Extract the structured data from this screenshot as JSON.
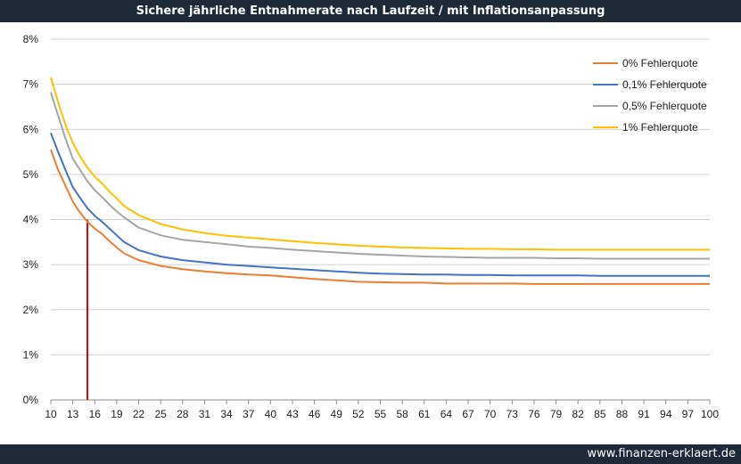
{
  "title": "Sichere jährliche Entnahmerate nach Laufzeit / mit Inflationsanpassung",
  "footer": "www.finanzen-erklaert.de",
  "chart_data": {
    "type": "line",
    "title": "Sichere jährliche Entnahmerate nach Laufzeit / mit Inflationsanpassung",
    "xlabel": "",
    "ylabel": "",
    "xlim": [
      10,
      100
    ],
    "ylim": [
      0,
      8
    ],
    "y_ticks": [
      {
        "value": 0,
        "label": "0%"
      },
      {
        "value": 1,
        "label": "1%"
      },
      {
        "value": 2,
        "label": "2%"
      },
      {
        "value": 3,
        "label": "3%"
      },
      {
        "value": 4,
        "label": "4%"
      },
      {
        "value": 5,
        "label": "5%"
      },
      {
        "value": 6,
        "label": "6%"
      },
      {
        "value": 7,
        "label": "7%"
      },
      {
        "value": 8,
        "label": "8%"
      }
    ],
    "x_ticks": [
      "10",
      "13",
      "16",
      "19",
      "22",
      "25",
      "28",
      "31",
      "34",
      "37",
      "40",
      "43",
      "46",
      "49",
      "52",
      "55",
      "58",
      "61",
      "64",
      "67",
      "70",
      "73",
      "76",
      "79",
      "82",
      "85",
      "88",
      "91",
      "94",
      "97",
      "100"
    ],
    "grid": true,
    "legend_position": "top-right",
    "x": [
      10,
      11,
      12,
      13,
      14,
      15,
      16,
      17,
      18,
      19,
      20,
      22,
      25,
      28,
      31,
      34,
      37,
      40,
      43,
      46,
      49,
      52,
      55,
      58,
      61,
      64,
      67,
      70,
      73,
      76,
      79,
      82,
      85,
      88,
      91,
      94,
      97,
      100
    ],
    "series": [
      {
        "name": "0% Fehlerquote",
        "color": "#ed7d31",
        "values": [
          5.55,
          5.1,
          4.75,
          4.4,
          4.15,
          3.95,
          3.8,
          3.68,
          3.52,
          3.38,
          3.25,
          3.1,
          2.97,
          2.9,
          2.85,
          2.81,
          2.78,
          2.76,
          2.72,
          2.68,
          2.65,
          2.62,
          2.61,
          2.6,
          2.6,
          2.58,
          2.58,
          2.58,
          2.58,
          2.57,
          2.57,
          2.57,
          2.57,
          2.57,
          2.57,
          2.57,
          2.57,
          2.57
        ]
      },
      {
        "name": "0,1% Fehlerquote",
        "color": "#4472c4",
        "values": [
          5.92,
          5.5,
          5.1,
          4.72,
          4.48,
          4.25,
          4.08,
          3.95,
          3.8,
          3.65,
          3.5,
          3.32,
          3.18,
          3.1,
          3.05,
          3.0,
          2.97,
          2.94,
          2.91,
          2.88,
          2.85,
          2.82,
          2.8,
          2.79,
          2.78,
          2.78,
          2.77,
          2.77,
          2.76,
          2.76,
          2.76,
          2.76,
          2.75,
          2.75,
          2.75,
          2.75,
          2.75,
          2.75
        ]
      },
      {
        "name": "0,5% Fehlerquote",
        "color": "#a5a5a5",
        "values": [
          6.82,
          6.3,
          5.8,
          5.35,
          5.1,
          4.85,
          4.65,
          4.5,
          4.33,
          4.18,
          4.05,
          3.82,
          3.65,
          3.55,
          3.5,
          3.45,
          3.4,
          3.37,
          3.33,
          3.3,
          3.27,
          3.24,
          3.22,
          3.2,
          3.18,
          3.17,
          3.16,
          3.15,
          3.15,
          3.15,
          3.14,
          3.14,
          3.13,
          3.13,
          3.13,
          3.13,
          3.13,
          3.13
        ]
      },
      {
        "name": "1% Fehlerquote",
        "color": "#ffc000",
        "values": [
          7.15,
          6.6,
          6.1,
          5.7,
          5.4,
          5.15,
          4.95,
          4.8,
          4.62,
          4.47,
          4.3,
          4.1,
          3.9,
          3.78,
          3.7,
          3.64,
          3.6,
          3.56,
          3.52,
          3.48,
          3.45,
          3.42,
          3.4,
          3.38,
          3.37,
          3.36,
          3.35,
          3.35,
          3.34,
          3.34,
          3.33,
          3.33,
          3.33,
          3.33,
          3.33,
          3.33,
          3.33,
          3.33
        ]
      }
    ],
    "annotation_line": {
      "x": 15,
      "y": 4.0,
      "color": "#e00000"
    }
  }
}
